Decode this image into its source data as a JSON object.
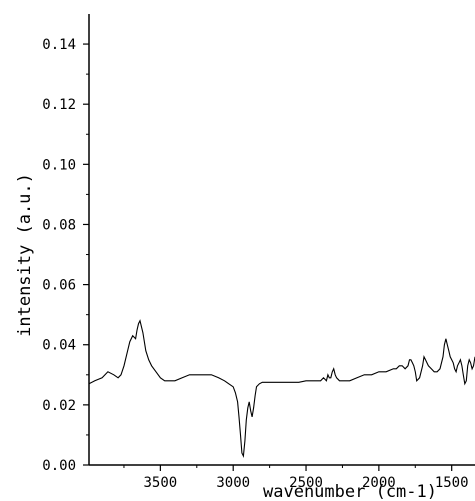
{
  "chart_data": {
    "type": "line",
    "title": "",
    "xlabel": "wavenumber (cm-1)",
    "ylabel": "intensity (a.u.)",
    "xlim": [
      3990,
      1340
    ],
    "ylim": [
      0,
      0.15
    ],
    "x_reversed": true,
    "x_ticks": [
      3500,
      3000,
      2500,
      2000,
      1500
    ],
    "x_tick_labels": [
      "3500",
      "3000",
      "2500",
      "2000",
      "1500"
    ],
    "y_ticks": [
      0,
      0.02,
      0.04,
      0.06,
      0.08,
      0.1,
      0.12,
      0.14
    ],
    "y_tick_labels": [
      "0.00",
      "0.02",
      "0.04",
      "0.06",
      "0.08",
      "0.10",
      "0.12",
      "0.14"
    ],
    "grid": false,
    "legend": "none",
    "line_color": "#000000",
    "series": [
      {
        "x": [
          3990,
          3950,
          3900,
          3860,
          3820,
          3790,
          3770,
          3750,
          3730,
          3710,
          3690,
          3670,
          3660,
          3650,
          3640,
          3620,
          3600,
          3580,
          3560,
          3530,
          3500,
          3470,
          3440,
          3400,
          3350,
          3300,
          3250,
          3200,
          3150,
          3100,
          3060,
          3030,
          3000,
          2985,
          2970,
          2960,
          2950,
          2940,
          2930,
          2920,
          2910,
          2900,
          2890,
          2880,
          2870,
          2860,
          2850,
          2840,
          2820,
          2800,
          2750,
          2700,
          2650,
          2600,
          2550,
          2500,
          2450,
          2400,
          2380,
          2360,
          2350,
          2340,
          2330,
          2320,
          2310,
          2300,
          2290,
          2270,
          2250,
          2200,
          2150,
          2100,
          2050,
          2000,
          1950,
          1900,
          1880,
          1860,
          1840,
          1820,
          1800,
          1790,
          1780,
          1770,
          1760,
          1750,
          1740,
          1720,
          1700,
          1690,
          1680,
          1660,
          1640,
          1620,
          1600,
          1580,
          1560,
          1550,
          1540,
          1530,
          1520,
          1510,
          1500,
          1490,
          1480,
          1470,
          1460,
          1450,
          1440,
          1430,
          1420,
          1410,
          1400,
          1390,
          1380,
          1370,
          1360,
          1350,
          1340
        ],
        "y": [
          0.027,
          0.028,
          0.029,
          0.031,
          0.03,
          0.029,
          0.03,
          0.033,
          0.037,
          0.041,
          0.043,
          0.042,
          0.045,
          0.047,
          0.048,
          0.044,
          0.038,
          0.035,
          0.033,
          0.031,
          0.029,
          0.028,
          0.028,
          0.028,
          0.029,
          0.03,
          0.03,
          0.03,
          0.03,
          0.029,
          0.028,
          0.027,
          0.026,
          0.024,
          0.021,
          0.016,
          0.01,
          0.004,
          0.003,
          0.008,
          0.015,
          0.019,
          0.021,
          0.018,
          0.016,
          0.019,
          0.023,
          0.026,
          0.027,
          0.0275,
          0.0275,
          0.0275,
          0.0275,
          0.0275,
          0.0275,
          0.028,
          0.028,
          0.028,
          0.029,
          0.028,
          0.03,
          0.029,
          0.029,
          0.031,
          0.032,
          0.03,
          0.029,
          0.028,
          0.028,
          0.028,
          0.029,
          0.03,
          0.03,
          0.031,
          0.031,
          0.032,
          0.032,
          0.033,
          0.033,
          0.032,
          0.033,
          0.035,
          0.035,
          0.034,
          0.033,
          0.031,
          0.028,
          0.029,
          0.033,
          0.036,
          0.035,
          0.033,
          0.032,
          0.031,
          0.031,
          0.032,
          0.036,
          0.04,
          0.042,
          0.04,
          0.038,
          0.036,
          0.035,
          0.034,
          0.032,
          0.031,
          0.033,
          0.034,
          0.035,
          0.033,
          0.03,
          0.027,
          0.028,
          0.033,
          0.035,
          0.034,
          0.032,
          0.033,
          0.036
        ]
      }
    ]
  }
}
